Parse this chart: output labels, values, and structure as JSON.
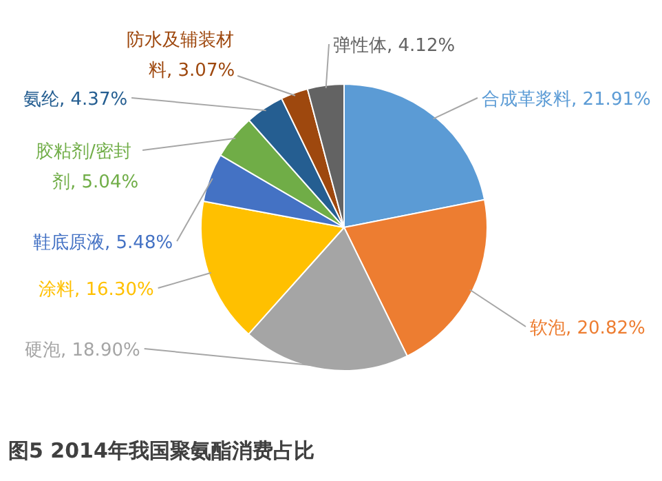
{
  "chart_data": {
    "type": "pie",
    "title": "图5 2014年我国聚氨酯消费占比",
    "categories": [
      "合成革浆料",
      "软泡",
      "硬泡",
      "涂料",
      "鞋底原液",
      "胶粘剂/密封剂",
      "氨纶",
      "防水及辅装材料",
      "弹性体"
    ],
    "values": [
      21.91,
      20.82,
      18.9,
      16.3,
      5.48,
      5.04,
      4.37,
      3.07,
      4.12
    ],
    "value_labels": [
      "21.91%",
      "20.82%",
      "18.90%",
      "16.30%",
      "5.48%",
      "5.04%",
      "4.37%",
      "3.07%",
      "4.12%"
    ],
    "colors": [
      "#5b9bd5",
      "#ed7d31",
      "#a5a5a5",
      "#ffc000",
      "#4472c4",
      "#70ad47",
      "#255e91",
      "#9e480e",
      "#636363"
    ],
    "legend": false
  }
}
